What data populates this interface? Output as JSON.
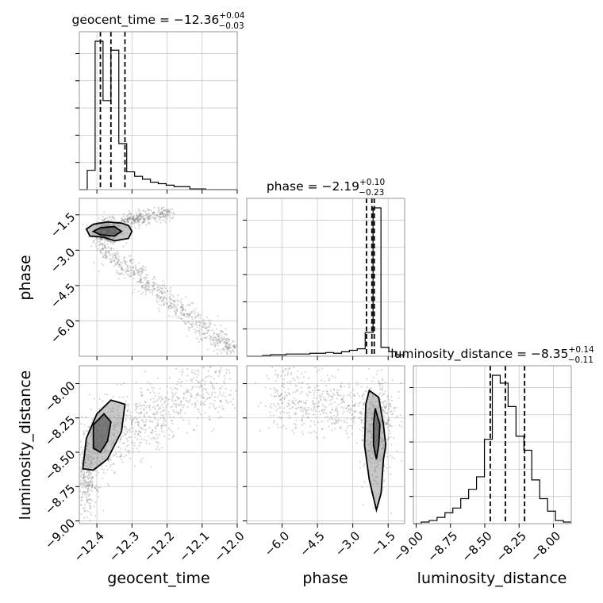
{
  "chart_data": {
    "type": "corner",
    "parameters": [
      "geocent_time",
      "phase",
      "luminosity_distance"
    ],
    "titles": [
      {
        "param": "geocent_time",
        "text": "geocent_time = −12.36",
        "plus": "+0.04",
        "minus": "−0.03"
      },
      {
        "param": "phase",
        "text": "phase = −2.19",
        "plus": "+0.10",
        "minus": "−0.23"
      },
      {
        "param": "luminosity_distance",
        "text": "luminosity_distance = −8.35",
        "plus": "+0.14",
        "minus": "−0.11"
      }
    ],
    "axis_labels": {
      "x": [
        "geocent_time",
        "phase",
        "luminosity_distance"
      ],
      "y": [
        "phase",
        "luminosity_distance"
      ]
    },
    "ranges": {
      "geocent_time": [
        -12.45,
        -12.0
      ],
      "phase": [
        -7.5,
        -0.8
      ],
      "luminosity_distance": [
        -9.02,
        -7.87
      ]
    },
    "ticks": {
      "geocent_time": [
        "−12.4",
        "−12.3",
        "−12.2",
        "−12.1",
        "−12.0"
      ],
      "geocent_time_values": [
        -12.4,
        -12.3,
        -12.2,
        -12.1,
        -12.0
      ],
      "phase": [
        "−6.0",
        "−4.5",
        "−3.0",
        "−1.5"
      ],
      "phase_values": [
        -6.0,
        -4.5,
        -3.0,
        -1.5
      ],
      "luminosity_distance": [
        "−9.00",
        "−8.75",
        "−8.50",
        "−8.25",
        "−8.00"
      ],
      "luminosity_distance_values": [
        -9.0,
        -8.75,
        -8.5,
        -8.25,
        -8.0
      ]
    },
    "quantiles": {
      "geocent_time": [
        -12.39,
        -12.36,
        -12.32
      ],
      "phase": [
        -2.42,
        -2.19,
        -2.09
      ],
      "luminosity_distance": [
        -8.46,
        -8.35,
        -8.21
      ]
    },
    "histograms": {
      "geocent_time": {
        "edges": [
          -12.45,
          -12.4275,
          -12.405,
          -12.3825,
          -12.36,
          -12.3375,
          -12.315,
          -12.2925,
          -12.27,
          -12.2475,
          -12.225,
          -12.2025,
          -12.18,
          -12.1575,
          -12.135,
          -12.1125,
          -12.09,
          -12.0675,
          -12.045,
          -12.0225,
          -12.0
        ],
        "counts": [
          0.0,
          0.13,
          1.0,
          0.6,
          0.94,
          0.31,
          0.12,
          0.09,
          0.07,
          0.05,
          0.04,
          0.03,
          0.02,
          0.02,
          0.005,
          0.005,
          0.0,
          0.0,
          0.0,
          0.0
        ]
      },
      "phase": {
        "edges": [
          -7.5,
          -7.165,
          -6.83,
          -6.495,
          -6.16,
          -5.825,
          -5.49,
          -5.155,
          -4.82,
          -4.485,
          -4.15,
          -3.815,
          -3.48,
          -3.145,
          -2.81,
          -2.475,
          -2.14,
          -1.805,
          -1.47,
          -1.135,
          -0.8
        ],
        "counts": [
          0.0,
          0.0,
          0.005,
          0.01,
          0.01,
          0.015,
          0.015,
          0.015,
          0.02,
          0.02,
          0.025,
          0.02,
          0.03,
          0.04,
          0.05,
          0.16,
          1.0,
          0.06,
          0.03,
          0.01
        ]
      },
      "luminosity_distance": {
        "edges": [
          -9.02,
          -8.9625,
          -8.905,
          -8.8475,
          -8.79,
          -8.7325,
          -8.675,
          -8.6175,
          -8.56,
          -8.5025,
          -8.445,
          -8.3875,
          -8.33,
          -8.2725,
          -8.215,
          -8.1575,
          -8.1,
          -8.0425,
          -7.985,
          -7.9275,
          -7.87
        ],
        "counts": [
          0.0,
          0.01,
          0.02,
          0.04,
          0.07,
          0.1,
          0.16,
          0.22,
          0.3,
          0.54,
          0.95,
          0.9,
          0.75,
          0.56,
          0.47,
          0.28,
          0.16,
          0.08,
          0.02,
          0.01
        ]
      }
    },
    "contours_2d": {
      "phase_vs_geocent_time": [
        [
          [
            -12.43,
            -2.1
          ],
          [
            -12.41,
            -1.9
          ],
          [
            -12.37,
            -1.8
          ],
          [
            -12.33,
            -1.85
          ],
          [
            -12.31,
            -1.95
          ],
          [
            -12.3,
            -2.2
          ],
          [
            -12.31,
            -2.5
          ],
          [
            -12.35,
            -2.6
          ],
          [
            -12.38,
            -2.45
          ],
          [
            -12.42,
            -2.4
          ]
        ],
        [
          [
            -12.41,
            -2.2
          ],
          [
            -12.39,
            -2.05
          ],
          [
            -12.35,
            -2.0
          ],
          [
            -12.33,
            -2.2
          ],
          [
            -12.35,
            -2.4
          ],
          [
            -12.39,
            -2.35
          ]
        ]
      ],
      "luminosity_distance_vs_geocent_time": [
        [
          [
            -12.44,
            -8.62
          ],
          [
            -12.43,
            -8.4
          ],
          [
            -12.4,
            -8.22
          ],
          [
            -12.36,
            -8.12
          ],
          [
            -12.32,
            -8.15
          ],
          [
            -12.33,
            -8.35
          ],
          [
            -12.37,
            -8.55
          ],
          [
            -12.41,
            -8.63
          ]
        ],
        [
          [
            -12.41,
            -8.47
          ],
          [
            -12.41,
            -8.3
          ],
          [
            -12.38,
            -8.22
          ],
          [
            -12.36,
            -8.28
          ],
          [
            -12.37,
            -8.42
          ],
          [
            -12.39,
            -8.5
          ]
        ]
      ],
      "luminosity_distance_vs_phase": [
        [
          [
            -2.3,
            -8.05
          ],
          [
            -1.9,
            -8.1
          ],
          [
            -1.7,
            -8.3
          ],
          [
            -1.6,
            -8.45
          ],
          [
            -1.7,
            -8.55
          ],
          [
            -1.8,
            -8.8
          ],
          [
            -2.0,
            -8.92
          ],
          [
            -2.3,
            -8.7
          ],
          [
            -2.5,
            -8.45
          ],
          [
            -2.45,
            -8.15
          ]
        ],
        [
          [
            -2.05,
            -8.18
          ],
          [
            -1.85,
            -8.3
          ],
          [
            -1.9,
            -8.45
          ],
          [
            -2.0,
            -8.55
          ],
          [
            -2.12,
            -8.45
          ],
          [
            -2.12,
            -8.3
          ]
        ]
      ]
    },
    "samples_2d_description_note": ""
  }
}
